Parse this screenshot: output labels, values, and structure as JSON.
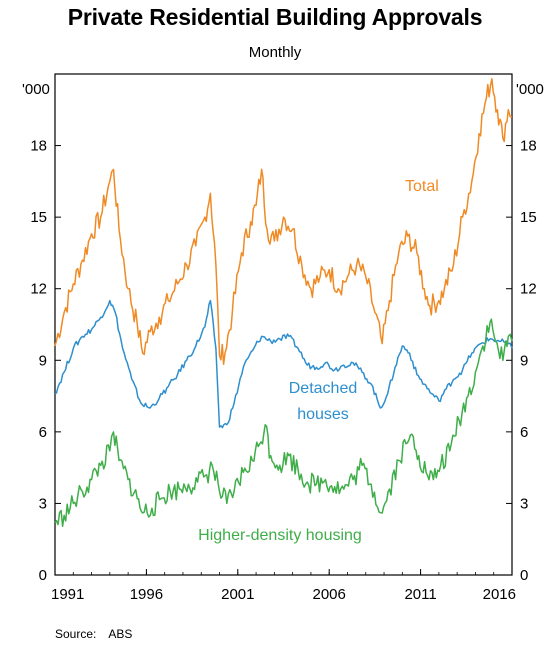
{
  "chart_data": {
    "type": "line",
    "title": "Private Residential Building Approvals",
    "subtitle": "Monthly",
    "unit_label": "'000",
    "source_label": "Source:",
    "source_value": "ABS",
    "x_ticks": [
      "1991",
      "1996",
      "2001",
      "2006",
      "2011",
      "2016"
    ],
    "xlim": [
      1991,
      2016
    ],
    "y_ticks": [
      "0",
      "3",
      "6",
      "9",
      "12",
      "15",
      "18"
    ],
    "ylim": [
      0,
      21
    ],
    "grid": false,
    "series": [
      {
        "name": "Total",
        "color": "#f08a24",
        "points": [
          [
            1991.0,
            9.6
          ],
          [
            1991.5,
            11.0
          ],
          [
            1992.0,
            12.2
          ],
          [
            1992.5,
            13.2
          ],
          [
            1993.0,
            14.3
          ],
          [
            1993.5,
            15.0
          ],
          [
            1994.0,
            16.5
          ],
          [
            1994.2,
            17.0
          ],
          [
            1994.5,
            14.5
          ],
          [
            1995.0,
            12.0
          ],
          [
            1995.5,
            10.5
          ],
          [
            1995.8,
            9.3
          ],
          [
            1996.2,
            10.2
          ],
          [
            1996.7,
            10.8
          ],
          [
            1997.2,
            11.5
          ],
          [
            1997.7,
            12.2
          ],
          [
            1998.2,
            13.0
          ],
          [
            1998.7,
            13.8
          ],
          [
            1999.2,
            15.0
          ],
          [
            1999.5,
            16.0
          ],
          [
            1999.8,
            13.0
          ],
          [
            2000.0,
            9.2
          ],
          [
            2000.3,
            9.3
          ],
          [
            2000.7,
            11.0
          ],
          [
            2001.2,
            13.5
          ],
          [
            2001.7,
            14.8
          ],
          [
            2002.0,
            15.5
          ],
          [
            2002.3,
            17.0
          ],
          [
            2002.6,
            14.5
          ],
          [
            2003.0,
            14.0
          ],
          [
            2003.5,
            15.0
          ],
          [
            2004.0,
            14.5
          ],
          [
            2004.5,
            13.0
          ],
          [
            2005.0,
            12.0
          ],
          [
            2005.5,
            12.5
          ],
          [
            2006.0,
            12.8
          ],
          [
            2006.5,
            12.0
          ],
          [
            2007.0,
            12.5
          ],
          [
            2007.5,
            13.0
          ],
          [
            2008.0,
            12.5
          ],
          [
            2008.5,
            11.0
          ],
          [
            2008.9,
            9.7
          ],
          [
            2009.3,
            11.5
          ],
          [
            2009.8,
            13.5
          ],
          [
            2010.3,
            14.2
          ],
          [
            2010.8,
            13.5
          ],
          [
            2011.2,
            12.0
          ],
          [
            2011.5,
            11.3
          ],
          [
            2012.0,
            11.5
          ],
          [
            2012.3,
            12.0
          ],
          [
            2012.8,
            13.0
          ],
          [
            2013.3,
            15.0
          ],
          [
            2013.8,
            16.5
          ],
          [
            2014.2,
            18.5
          ],
          [
            2014.6,
            20.0
          ],
          [
            2014.9,
            20.8
          ],
          [
            2015.2,
            19.5
          ],
          [
            2015.5,
            18.3
          ],
          [
            2015.8,
            19.5
          ],
          [
            2016.0,
            19.2
          ]
        ]
      },
      {
        "name": "Detached houses",
        "color": "#2e8fce",
        "points": [
          [
            1991.0,
            7.6
          ],
          [
            1991.5,
            8.5
          ],
          [
            1992.0,
            9.5
          ],
          [
            1992.5,
            10.0
          ],
          [
            1993.0,
            10.3
          ],
          [
            1993.5,
            10.8
          ],
          [
            1994.0,
            11.5
          ],
          [
            1994.3,
            11.0
          ],
          [
            1994.7,
            9.5
          ],
          [
            1995.2,
            8.2
          ],
          [
            1995.7,
            7.2
          ],
          [
            1996.2,
            7.0
          ],
          [
            1996.7,
            7.4
          ],
          [
            1997.2,
            7.9
          ],
          [
            1997.7,
            8.4
          ],
          [
            1998.2,
            9.0
          ],
          [
            1998.7,
            9.6
          ],
          [
            1999.2,
            10.4
          ],
          [
            1999.5,
            11.5
          ],
          [
            1999.8,
            9.5
          ],
          [
            2000.0,
            6.2
          ],
          [
            2000.4,
            6.3
          ],
          [
            2000.8,
            7.2
          ],
          [
            2001.3,
            8.7
          ],
          [
            2001.8,
            9.4
          ],
          [
            2002.3,
            10.0
          ],
          [
            2002.8,
            9.8
          ],
          [
            2003.3,
            9.9
          ],
          [
            2003.8,
            10.0
          ],
          [
            2004.3,
            9.5
          ],
          [
            2004.8,
            8.8
          ],
          [
            2005.3,
            8.7
          ],
          [
            2005.8,
            8.9
          ],
          [
            2006.3,
            8.6
          ],
          [
            2006.8,
            8.8
          ],
          [
            2007.3,
            8.9
          ],
          [
            2007.8,
            8.5
          ],
          [
            2008.3,
            8.0
          ],
          [
            2008.8,
            7.0
          ],
          [
            2009.2,
            7.6
          ],
          [
            2009.6,
            8.7
          ],
          [
            2010.0,
            9.6
          ],
          [
            2010.4,
            9.3
          ],
          [
            2010.8,
            8.4
          ],
          [
            2011.2,
            8.0
          ],
          [
            2011.6,
            7.6
          ],
          [
            2012.0,
            7.3
          ],
          [
            2012.4,
            7.8
          ],
          [
            2012.8,
            8.2
          ],
          [
            2013.3,
            8.6
          ],
          [
            2013.8,
            9.3
          ],
          [
            2014.3,
            9.7
          ],
          [
            2014.8,
            9.9
          ],
          [
            2015.3,
            9.8
          ],
          [
            2015.8,
            9.7
          ],
          [
            2016.0,
            9.5
          ]
        ]
      },
      {
        "name": "Higher-density housing",
        "color": "#3fae49",
        "points": [
          [
            1991.0,
            2.2
          ],
          [
            1991.5,
            2.5
          ],
          [
            1992.0,
            3.0
          ],
          [
            1992.5,
            3.5
          ],
          [
            1993.0,
            4.0
          ],
          [
            1993.5,
            4.6
          ],
          [
            1994.0,
            5.2
          ],
          [
            1994.2,
            6.0
          ],
          [
            1994.5,
            4.8
          ],
          [
            1995.0,
            4.0
          ],
          [
            1995.5,
            3.2
          ],
          [
            1995.8,
            2.6
          ],
          [
            1996.3,
            2.8
          ],
          [
            1996.8,
            3.2
          ],
          [
            1997.3,
            3.5
          ],
          [
            1997.8,
            3.6
          ],
          [
            1998.3,
            3.8
          ],
          [
            1998.8,
            3.9
          ],
          [
            1999.3,
            4.2
          ],
          [
            1999.6,
            4.6
          ],
          [
            2000.0,
            3.5
          ],
          [
            2000.4,
            3.0
          ],
          [
            2000.8,
            3.5
          ],
          [
            2001.3,
            4.3
          ],
          [
            2001.8,
            4.8
          ],
          [
            2002.2,
            5.5
          ],
          [
            2002.5,
            6.3
          ],
          [
            2002.8,
            5.0
          ],
          [
            2003.3,
            4.6
          ],
          [
            2003.8,
            5.0
          ],
          [
            2004.3,
            4.4
          ],
          [
            2004.8,
            3.9
          ],
          [
            2005.3,
            3.8
          ],
          [
            2005.8,
            4.0
          ],
          [
            2006.3,
            3.7
          ],
          [
            2006.8,
            3.6
          ],
          [
            2007.3,
            4.0
          ],
          [
            2007.8,
            4.6
          ],
          [
            2008.3,
            3.8
          ],
          [
            2008.9,
            2.6
          ],
          [
            2009.3,
            3.6
          ],
          [
            2009.8,
            4.8
          ],
          [
            2010.2,
            5.5
          ],
          [
            2010.6,
            5.8
          ],
          [
            2010.9,
            5.0
          ],
          [
            2011.3,
            4.3
          ],
          [
            2011.7,
            4.0
          ],
          [
            2012.1,
            4.6
          ],
          [
            2012.6,
            5.2
          ],
          [
            2013.1,
            6.5
          ],
          [
            2013.6,
            7.5
          ],
          [
            2014.0,
            8.5
          ],
          [
            2014.4,
            9.6
          ],
          [
            2014.8,
            10.6
          ],
          [
            2015.1,
            9.8
          ],
          [
            2015.5,
            9.0
          ],
          [
            2015.8,
            10.0
          ],
          [
            2016.0,
            9.8
          ]
        ]
      }
    ],
    "annotations": [
      {
        "text": "Total",
        "color": "#f08a24"
      },
      {
        "text": "Detached",
        "color": "#2e8fce"
      },
      {
        "text": "houses",
        "color": "#2e8fce"
      },
      {
        "text": "Higher-density housing",
        "color": "#3fae49"
      }
    ]
  }
}
